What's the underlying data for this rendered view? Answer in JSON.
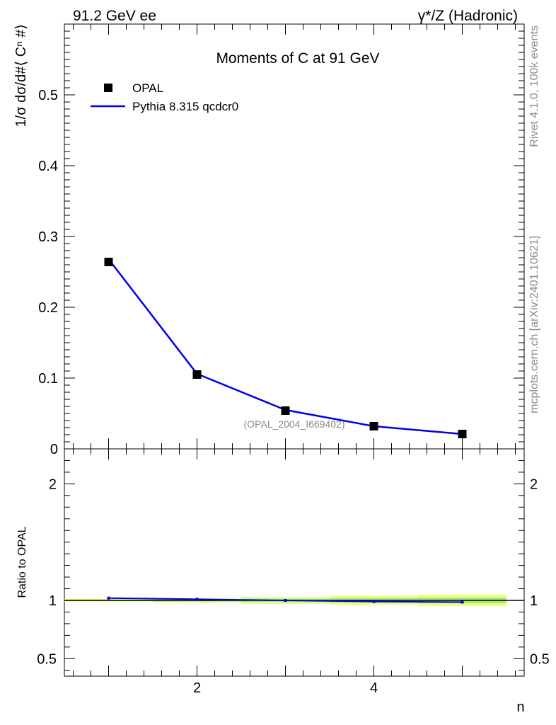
{
  "header": {
    "left": "91.2 GeV ee",
    "right": "γ*/Z (Hadronic)"
  },
  "side_labels": {
    "rivet": "Rivet 4.1.0,  100k events",
    "mcplots": "mcplots.cern.ch [arXiv:2401.10621]"
  },
  "chart_data": [
    {
      "type": "line",
      "panel": "main",
      "title": "Moments of C at 91 GeV",
      "ylabel": "1/σ  dσ/d#⟨ Cⁿ #⟩",
      "xlabel": "",
      "xlim": [
        0.5,
        5.7
      ],
      "ylim": [
        0,
        0.6
      ],
      "yticks": [
        0.1,
        0.2,
        0.3,
        0.4,
        0.5
      ],
      "ytick_labels": [
        "0.1",
        "0.2",
        "0.3",
        "0.4",
        "0.5"
      ],
      "y_zero_label": "0",
      "x": [
        1,
        2,
        3,
        4,
        5
      ],
      "series": [
        {
          "name": "OPAL",
          "style": "markers",
          "color": "#000000",
          "values": [
            0.264,
            0.105,
            0.054,
            0.032,
            0.021
          ]
        },
        {
          "name": "Pythia 8.315 qcdcr0",
          "style": "line",
          "color": "#0000ee",
          "values": [
            0.268,
            0.106,
            0.055,
            0.032,
            0.021
          ]
        }
      ],
      "legend_position": "top-left",
      "annotation": "(OPAL_2004_I669402)"
    },
    {
      "type": "line",
      "panel": "ratio",
      "ylabel": "Ratio to OPAL",
      "xlabel": "n",
      "xlim": [
        0.5,
        5.7
      ],
      "ylim": [
        0.35,
        2.3
      ],
      "yticks": [
        0.5,
        1,
        2
      ],
      "ytick_labels": [
        "0.5",
        "1",
        "2"
      ],
      "xticks": [
        2,
        4
      ],
      "xtick_labels": [
        "2",
        "4"
      ],
      "x": [
        1,
        2,
        3,
        4,
        5
      ],
      "series": [
        {
          "name": "Pythia 8.315 qcdcr0",
          "style": "line",
          "color": "#0000ee",
          "values": [
            1.02,
            1.01,
            1.0,
            0.99,
            0.985
          ]
        }
      ],
      "band": {
        "color_outer": "#f0ff80",
        "color_inner": "#a8ea7a",
        "half_width": [
          0.012,
          0.02,
          0.03,
          0.04,
          0.05
        ]
      }
    }
  ]
}
